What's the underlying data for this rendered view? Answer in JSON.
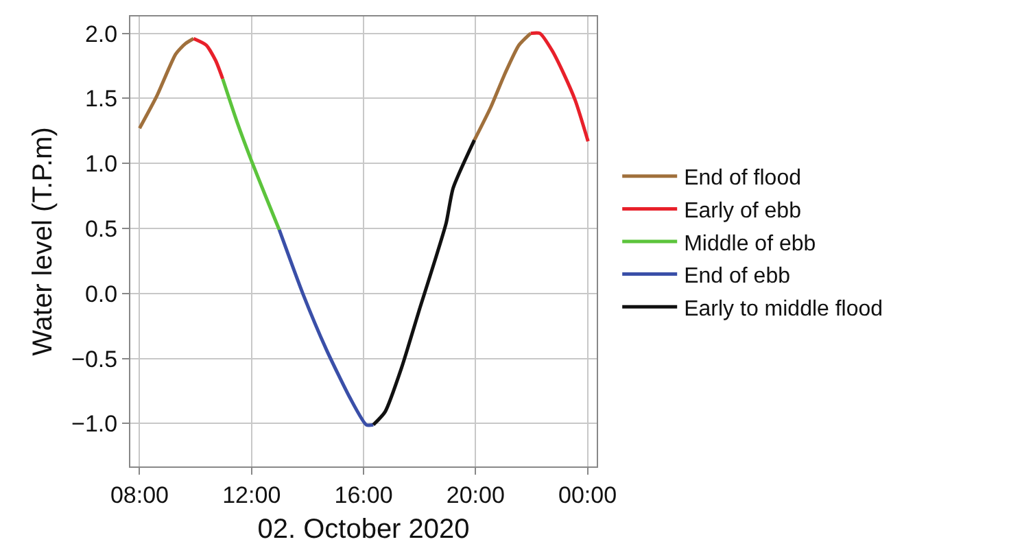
{
  "chart_data": {
    "type": "line",
    "xlabel": "02. October 2020",
    "ylabel": "Water level (T.P.m)",
    "xlim": [
      7.67,
      24.33
    ],
    "xticks": [
      {
        "value": 8,
        "label": "08:00"
      },
      {
        "value": 12,
        "label": "12:00"
      },
      {
        "value": 16,
        "label": "16:00"
      },
      {
        "value": 20,
        "label": "20:00"
      },
      {
        "value": 24,
        "label": "00:00"
      }
    ],
    "ylim": [
      -1.33,
      2.13
    ],
    "yticks": [
      {
        "value": -1,
        "label": "−1.0"
      },
      {
        "value": -0.5,
        "label": "−0.5"
      },
      {
        "value": 0,
        "label": "0.0"
      },
      {
        "value": 0.5,
        "label": "0.5"
      },
      {
        "value": 1,
        "label": "1.0"
      },
      {
        "value": 1.5,
        "label": "1.5"
      },
      {
        "value": 2,
        "label": "2.0"
      }
    ],
    "grid": true,
    "legend": "right",
    "marker": "none",
    "line_style": "solid",
    "series": [
      {
        "name": "End of flood",
        "color": "#a0703c",
        "x": [
          8,
          8.62,
          9.29,
          9.63,
          9.93,
          15,
          19.96,
          20.54,
          21.05,
          21.55,
          21.97
        ],
        "values": [
          1.27,
          1.52,
          1.84,
          1.92,
          1.96,
          null,
          1.18,
          1.43,
          1.69,
          1.91,
          2.0
        ]
      },
      {
        "name": "Early of ebb",
        "color": "#e8202a",
        "x": [
          9.93,
          10.38,
          10.72,
          10.97,
          16,
          21.97,
          22.3,
          22.73,
          23.15,
          23.57,
          24.02
        ],
        "values": [
          1.96,
          1.91,
          1.79,
          1.65,
          null,
          2.0,
          2.0,
          1.87,
          1.69,
          1.48,
          1.17
        ]
      },
      {
        "name": "Middle of ebb",
        "color": "#5cc43c",
        "x": [
          10.97,
          11.48,
          11.98,
          12.48,
          12.99
        ],
        "values": [
          1.65,
          1.32,
          1.03,
          0.76,
          0.49
        ]
      },
      {
        "name": "End of ebb",
        "color": "#3a4fa8",
        "x": [
          12.99,
          13.83,
          14.67,
          15.51,
          16.1,
          16.35
        ],
        "values": [
          0.49,
          0.0,
          -0.43,
          -0.8,
          -1.01,
          -1.01
        ]
      },
      {
        "name": "Early to middle flood",
        "color": "#111111",
        "x": [
          16.35,
          16.77,
          17.36,
          18.03,
          18.53,
          18.95,
          19.2,
          19.96
        ],
        "values": [
          -1.01,
          -0.91,
          -0.57,
          -0.1,
          0.24,
          0.54,
          0.81,
          1.18
        ]
      }
    ]
  }
}
